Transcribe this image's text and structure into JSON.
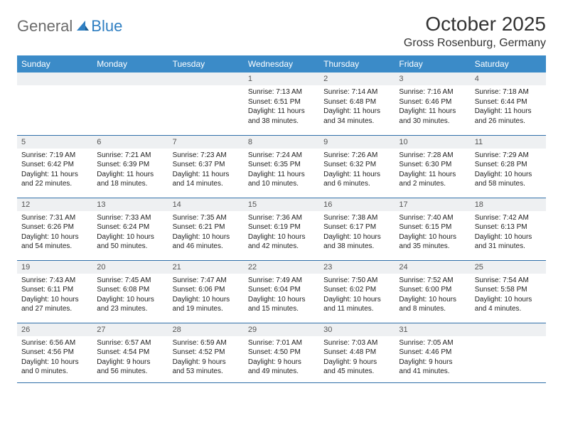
{
  "logo": {
    "word1": "General",
    "word2": "Blue"
  },
  "title": "October 2025",
  "location": "Gross Rosenburg, Germany",
  "colors": {
    "header_bg": "#3b8bc8",
    "header_text": "#ffffff",
    "daynum_bg": "#eef0f2",
    "row_border": "#2f6fa8",
    "logo_gray": "#6b6b6b",
    "logo_blue": "#2f7fc2"
  },
  "weekdays": [
    "Sunday",
    "Monday",
    "Tuesday",
    "Wednesday",
    "Thursday",
    "Friday",
    "Saturday"
  ],
  "weeks": [
    [
      null,
      null,
      null,
      {
        "d": "1",
        "sr": "7:13 AM",
        "ss": "6:51 PM",
        "dl": "11 hours and 38 minutes."
      },
      {
        "d": "2",
        "sr": "7:14 AM",
        "ss": "6:48 PM",
        "dl": "11 hours and 34 minutes."
      },
      {
        "d": "3",
        "sr": "7:16 AM",
        "ss": "6:46 PM",
        "dl": "11 hours and 30 minutes."
      },
      {
        "d": "4",
        "sr": "7:18 AM",
        "ss": "6:44 PM",
        "dl": "11 hours and 26 minutes."
      }
    ],
    [
      {
        "d": "5",
        "sr": "7:19 AM",
        "ss": "6:42 PM",
        "dl": "11 hours and 22 minutes."
      },
      {
        "d": "6",
        "sr": "7:21 AM",
        "ss": "6:39 PM",
        "dl": "11 hours and 18 minutes."
      },
      {
        "d": "7",
        "sr": "7:23 AM",
        "ss": "6:37 PM",
        "dl": "11 hours and 14 minutes."
      },
      {
        "d": "8",
        "sr": "7:24 AM",
        "ss": "6:35 PM",
        "dl": "11 hours and 10 minutes."
      },
      {
        "d": "9",
        "sr": "7:26 AM",
        "ss": "6:32 PM",
        "dl": "11 hours and 6 minutes."
      },
      {
        "d": "10",
        "sr": "7:28 AM",
        "ss": "6:30 PM",
        "dl": "11 hours and 2 minutes."
      },
      {
        "d": "11",
        "sr": "7:29 AM",
        "ss": "6:28 PM",
        "dl": "10 hours and 58 minutes."
      }
    ],
    [
      {
        "d": "12",
        "sr": "7:31 AM",
        "ss": "6:26 PM",
        "dl": "10 hours and 54 minutes."
      },
      {
        "d": "13",
        "sr": "7:33 AM",
        "ss": "6:24 PM",
        "dl": "10 hours and 50 minutes."
      },
      {
        "d": "14",
        "sr": "7:35 AM",
        "ss": "6:21 PM",
        "dl": "10 hours and 46 minutes."
      },
      {
        "d": "15",
        "sr": "7:36 AM",
        "ss": "6:19 PM",
        "dl": "10 hours and 42 minutes."
      },
      {
        "d": "16",
        "sr": "7:38 AM",
        "ss": "6:17 PM",
        "dl": "10 hours and 38 minutes."
      },
      {
        "d": "17",
        "sr": "7:40 AM",
        "ss": "6:15 PM",
        "dl": "10 hours and 35 minutes."
      },
      {
        "d": "18",
        "sr": "7:42 AM",
        "ss": "6:13 PM",
        "dl": "10 hours and 31 minutes."
      }
    ],
    [
      {
        "d": "19",
        "sr": "7:43 AM",
        "ss": "6:11 PM",
        "dl": "10 hours and 27 minutes."
      },
      {
        "d": "20",
        "sr": "7:45 AM",
        "ss": "6:08 PM",
        "dl": "10 hours and 23 minutes."
      },
      {
        "d": "21",
        "sr": "7:47 AM",
        "ss": "6:06 PM",
        "dl": "10 hours and 19 minutes."
      },
      {
        "d": "22",
        "sr": "7:49 AM",
        "ss": "6:04 PM",
        "dl": "10 hours and 15 minutes."
      },
      {
        "d": "23",
        "sr": "7:50 AM",
        "ss": "6:02 PM",
        "dl": "10 hours and 11 minutes."
      },
      {
        "d": "24",
        "sr": "7:52 AM",
        "ss": "6:00 PM",
        "dl": "10 hours and 8 minutes."
      },
      {
        "d": "25",
        "sr": "7:54 AM",
        "ss": "5:58 PM",
        "dl": "10 hours and 4 minutes."
      }
    ],
    [
      {
        "d": "26",
        "sr": "6:56 AM",
        "ss": "4:56 PM",
        "dl": "10 hours and 0 minutes."
      },
      {
        "d": "27",
        "sr": "6:57 AM",
        "ss": "4:54 PM",
        "dl": "9 hours and 56 minutes."
      },
      {
        "d": "28",
        "sr": "6:59 AM",
        "ss": "4:52 PM",
        "dl": "9 hours and 53 minutes."
      },
      {
        "d": "29",
        "sr": "7:01 AM",
        "ss": "4:50 PM",
        "dl": "9 hours and 49 minutes."
      },
      {
        "d": "30",
        "sr": "7:03 AM",
        "ss": "4:48 PM",
        "dl": "9 hours and 45 minutes."
      },
      {
        "d": "31",
        "sr": "7:05 AM",
        "ss": "4:46 PM",
        "dl": "9 hours and 41 minutes."
      },
      null
    ]
  ],
  "labels": {
    "sunrise": "Sunrise:",
    "sunset": "Sunset:",
    "daylight": "Daylight:"
  }
}
